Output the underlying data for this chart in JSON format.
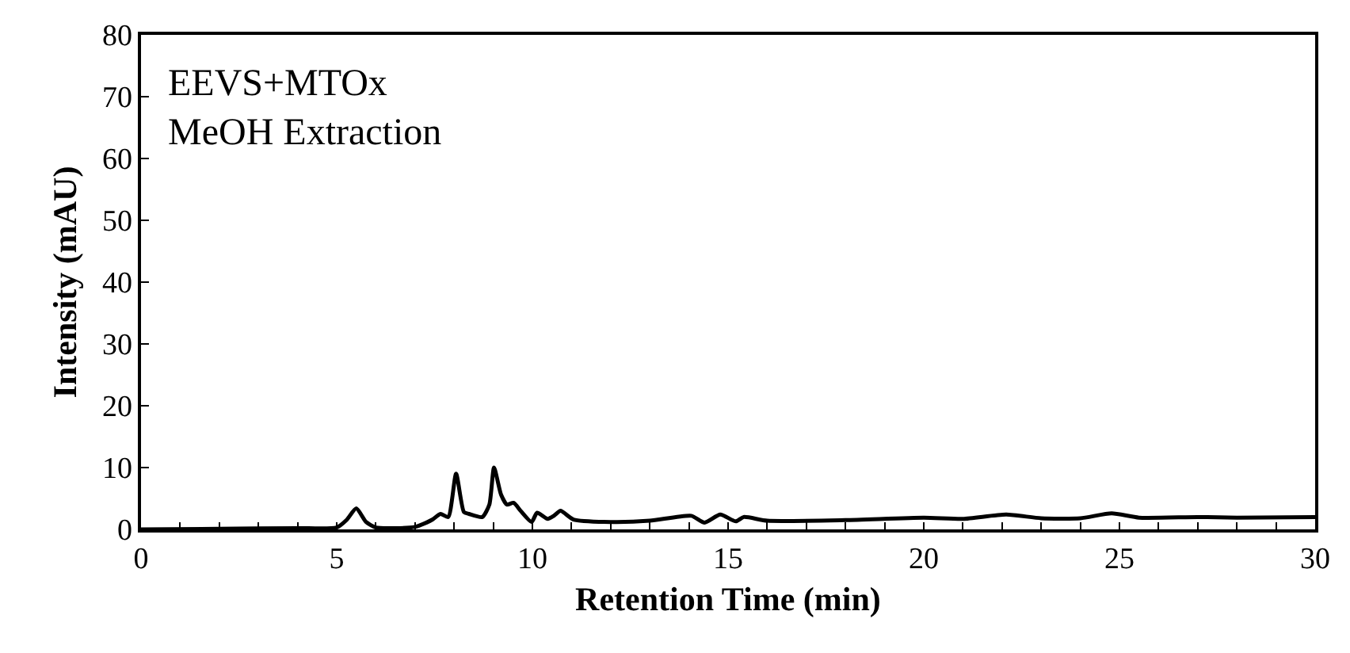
{
  "chart_data": {
    "type": "line",
    "xlabel": "Retention Time (min)",
    "ylabel": "Intensity (mAU)",
    "annotations": [
      "EEVS+MTOx",
      "MeOH Extraction"
    ],
    "xlim": [
      0,
      30
    ],
    "ylim": [
      0,
      80
    ],
    "xticks": [
      0,
      {
        "value": 1,
        "label": null
      },
      {
        "value": 2,
        "label": null
      },
      {
        "value": 3,
        "label": null
      },
      {
        "value": 4,
        "label": null
      },
      5,
      {
        "value": 6,
        "label": null
      },
      {
        "value": 7,
        "label": null
      },
      {
        "value": 8,
        "label": null
      },
      {
        "value": 9,
        "label": null
      },
      10,
      {
        "value": 11,
        "label": null
      },
      {
        "value": 12,
        "label": null
      },
      {
        "value": 13,
        "label": null
      },
      {
        "value": 14,
        "label": null
      },
      15,
      {
        "value": 16,
        "label": null
      },
      {
        "value": 17,
        "label": null
      },
      {
        "value": 18,
        "label": null
      },
      {
        "value": 19,
        "label": null
      },
      20,
      {
        "value": 21,
        "label": null
      },
      {
        "value": 22,
        "label": null
      },
      {
        "value": 23,
        "label": null
      },
      {
        "value": 24,
        "label": null
      },
      25,
      {
        "value": 26,
        "label": null
      },
      {
        "value": 27,
        "label": null
      },
      {
        "value": 28,
        "label": null
      },
      {
        "value": 29,
        "label": null
      },
      30
    ],
    "yticks": [
      0,
      10,
      20,
      30,
      40,
      50,
      60,
      70,
      80
    ],
    "marker": "none",
    "line_style": "solid",
    "series": [
      {
        "color": "#000000",
        "x": [
          0,
          2,
          4,
          5,
          5.25,
          5.5,
          5.75,
          6,
          6.5,
          7,
          7.1,
          7.45,
          7.65,
          7.85,
          8.05,
          8.25,
          8.38,
          8.72,
          8.9,
          9.02,
          9.2,
          9.35,
          9.52,
          9.7,
          9.98,
          10.12,
          10.39,
          10.55,
          10.72,
          11.05,
          12,
          13,
          14.06,
          14.4,
          14.8,
          15.2,
          15.4,
          16,
          18,
          20,
          21,
          22.1,
          23,
          24,
          24.8,
          25.5,
          27,
          28,
          30
        ],
        "values": [
          0,
          0.1,
          0.2,
          0.3,
          1.5,
          3.4,
          1.2,
          0.3,
          0.2,
          0.4,
          0.6,
          1.6,
          2.5,
          2.0,
          9,
          2.8,
          2.5,
          2.0,
          4,
          10,
          5.6,
          4.0,
          4.3,
          3.0,
          1.2,
          2.7,
          1.7,
          2.2,
          3.0,
          1.6,
          1.2,
          1.4,
          2.2,
          1.1,
          2.4,
          1.3,
          2.0,
          1.4,
          1.5,
          1.9,
          1.7,
          2.4,
          1.8,
          1.8,
          2.6,
          1.9,
          2.0,
          1.9,
          2.0
        ]
      }
    ]
  }
}
